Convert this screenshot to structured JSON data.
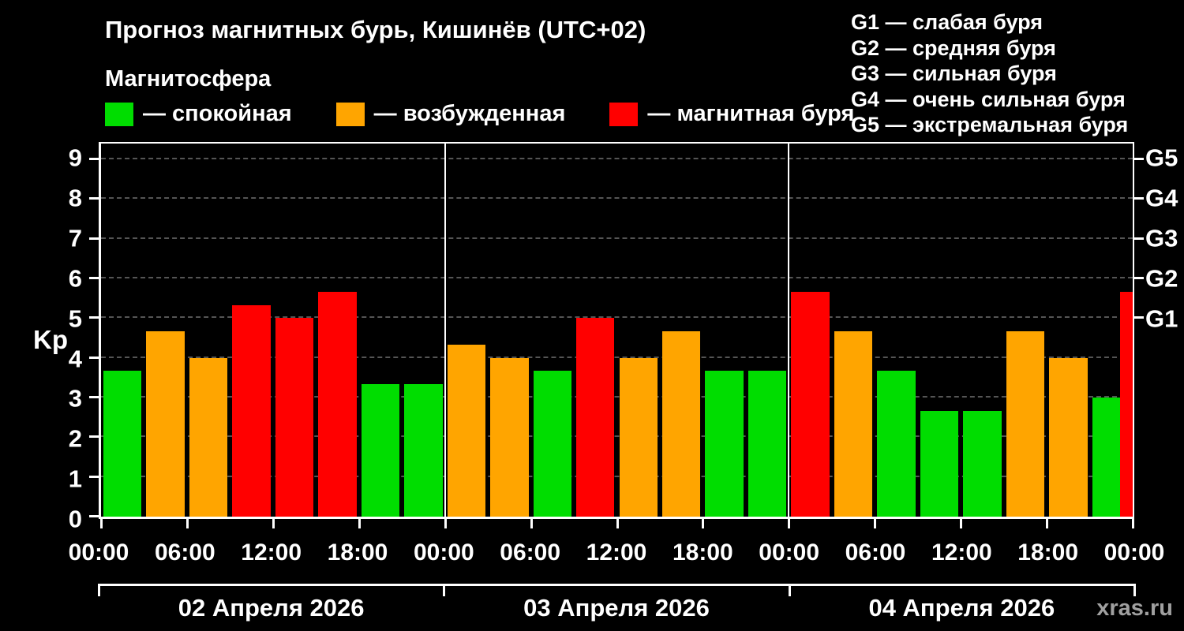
{
  "title": "Прогноз магнитных бурь, Кишинёв (UTC+02)",
  "legend": {
    "title": "Магнитосфера",
    "items": [
      {
        "id": "quiet",
        "label": "— спокойная",
        "color": "#00dd00"
      },
      {
        "id": "active",
        "label": "— возбужденная",
        "color": "#ffa500"
      },
      {
        "id": "storm",
        "label": "— магнитная буря",
        "color": "#ff0000"
      }
    ]
  },
  "g_legend": [
    "G1 — слабая буря",
    "G2 — средняя буря",
    "G3 — сильная буря",
    "G4 — очень сильная буря",
    "G5 — экстремальная буря"
  ],
  "watermark": "xras.ru",
  "chart_data": {
    "type": "bar",
    "title": "Прогноз магнитных бурь, Кишинёв (UTC+02)",
    "ylabel": "Kp",
    "ylim": [
      0,
      9.4
    ],
    "grid": "dashed-horizontal",
    "y_ticks": [
      0,
      1,
      2,
      3,
      4,
      5,
      6,
      7,
      8,
      9
    ],
    "right_axis_ticks": [
      {
        "label": "G1",
        "value": 5
      },
      {
        "label": "G2",
        "value": 6
      },
      {
        "label": "G3",
        "value": 7
      },
      {
        "label": "G4",
        "value": 8
      },
      {
        "label": "G5",
        "value": 9
      }
    ],
    "total_hours": 72,
    "day_boundaries_hours": [
      24,
      48
    ],
    "x_ticks": [
      {
        "hour": 0,
        "label": "00:00"
      },
      {
        "hour": 6,
        "label": "06:00"
      },
      {
        "hour": 12,
        "label": "12:00"
      },
      {
        "hour": 18,
        "label": "18:00"
      },
      {
        "hour": 24,
        "label": "00:00"
      },
      {
        "hour": 30,
        "label": "06:00"
      },
      {
        "hour": 36,
        "label": "12:00"
      },
      {
        "hour": 42,
        "label": "18:00"
      },
      {
        "hour": 48,
        "label": "00:00"
      },
      {
        "hour": 54,
        "label": "06:00"
      },
      {
        "hour": 60,
        "label": "12:00"
      },
      {
        "hour": 66,
        "label": "18:00"
      },
      {
        "hour": 72,
        "label": "00:00"
      }
    ],
    "days": [
      {
        "label": "02 Апреля 2026",
        "start_hour": 0,
        "end_hour": 24
      },
      {
        "label": "03 Апреля 2026",
        "start_hour": 24,
        "end_hour": 48
      },
      {
        "label": "04 Апреля 2026",
        "start_hour": 48,
        "end_hour": 72
      }
    ],
    "colors": {
      "quiet": "#00dd00",
      "active": "#ffa500",
      "storm": "#ff0000"
    },
    "bars": [
      {
        "start_hour": 0,
        "hours": 3,
        "value": 3.67,
        "status": "quiet"
      },
      {
        "start_hour": 3,
        "hours": 3,
        "value": 4.67,
        "status": "active"
      },
      {
        "start_hour": 6,
        "hours": 3,
        "value": 4.0,
        "status": "active"
      },
      {
        "start_hour": 9,
        "hours": 3,
        "value": 5.33,
        "status": "storm"
      },
      {
        "start_hour": 12,
        "hours": 3,
        "value": 5.0,
        "status": "storm"
      },
      {
        "start_hour": 15,
        "hours": 3,
        "value": 5.67,
        "status": "storm"
      },
      {
        "start_hour": 18,
        "hours": 3,
        "value": 3.33,
        "status": "quiet"
      },
      {
        "start_hour": 21,
        "hours": 3,
        "value": 3.33,
        "status": "quiet"
      },
      {
        "start_hour": 24,
        "hours": 3,
        "value": 4.33,
        "status": "active"
      },
      {
        "start_hour": 27,
        "hours": 3,
        "value": 4.0,
        "status": "active"
      },
      {
        "start_hour": 30,
        "hours": 3,
        "value": 3.67,
        "status": "quiet"
      },
      {
        "start_hour": 33,
        "hours": 3,
        "value": 5.0,
        "status": "storm"
      },
      {
        "start_hour": 36,
        "hours": 3,
        "value": 4.0,
        "status": "active"
      },
      {
        "start_hour": 39,
        "hours": 3,
        "value": 4.67,
        "status": "active"
      },
      {
        "start_hour": 42,
        "hours": 3,
        "value": 3.67,
        "status": "quiet"
      },
      {
        "start_hour": 45,
        "hours": 3,
        "value": 3.67,
        "status": "quiet"
      },
      {
        "start_hour": 48,
        "hours": 3,
        "value": 5.67,
        "status": "storm"
      },
      {
        "start_hour": 51,
        "hours": 3,
        "value": 4.67,
        "status": "active"
      },
      {
        "start_hour": 54,
        "hours": 3,
        "value": 3.67,
        "status": "quiet"
      },
      {
        "start_hour": 57,
        "hours": 3,
        "value": 2.67,
        "status": "quiet"
      },
      {
        "start_hour": 60,
        "hours": 3,
        "value": 2.67,
        "status": "quiet"
      },
      {
        "start_hour": 63,
        "hours": 3,
        "value": 4.67,
        "status": "active"
      },
      {
        "start_hour": 66,
        "hours": 3,
        "value": 4.0,
        "status": "active"
      },
      {
        "start_hour": 69,
        "hours": 3,
        "value": 3.0,
        "status": "quiet"
      },
      {
        "start_hour": 72,
        "hours": 3,
        "value": 5.67,
        "status": "storm",
        "clipped": true
      }
    ]
  }
}
